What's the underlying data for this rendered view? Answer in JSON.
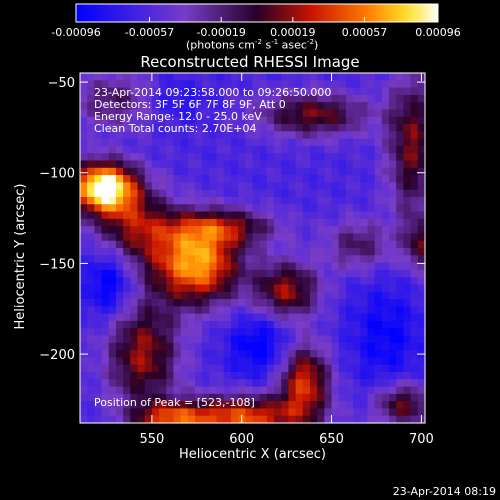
{
  "chart_data": {
    "type": "heatmap",
    "title": "Reconstructed RHESSI Image",
    "xlabel": "Heliocentric X (arcsec)",
    "ylabel": "Heliocentric Y (arcsec)",
    "xlim": [
      510,
      702
    ],
    "ylim": [
      -238,
      -45
    ],
    "x_ticks": [
      550,
      600,
      650,
      700
    ],
    "y_ticks": [
      -50,
      -100,
      -150,
      -200
    ],
    "colorbar": {
      "range": [
        -0.00096,
        0.00096
      ],
      "tick_labels": [
        "-0.00096",
        "-0.00057",
        "-0.00019",
        "0.00019",
        "0.00057",
        "0.00096"
      ],
      "tick_values": [
        -0.00096,
        -0.00057,
        -0.00019,
        0.00019,
        0.00057,
        0.00096
      ],
      "unit_base": "(photons cm",
      "unit_exp1": "-2",
      "unit_mid": " s",
      "unit_exp2": "-1",
      "unit_mid2": " asec",
      "unit_exp3": "-2",
      "unit_end": ")",
      "colormap": "blue-purple-red-yellow-white"
    },
    "annotations": {
      "time_range": "23-Apr-2014 09:23:58.000 to 09:26:50.000",
      "detectors": "Detectors: 3F 5F 6F 7F 8F 9F, Att 0",
      "energy": "Energy Range: 12.0 - 25.0 keV",
      "clean": "Clean     Total counts: 2.70E+04",
      "peak": "Position of Peak = [523,-108]"
    },
    "peak_position": [
      523,
      -108
    ],
    "footer_date": "23-Apr-2014 08:19"
  }
}
